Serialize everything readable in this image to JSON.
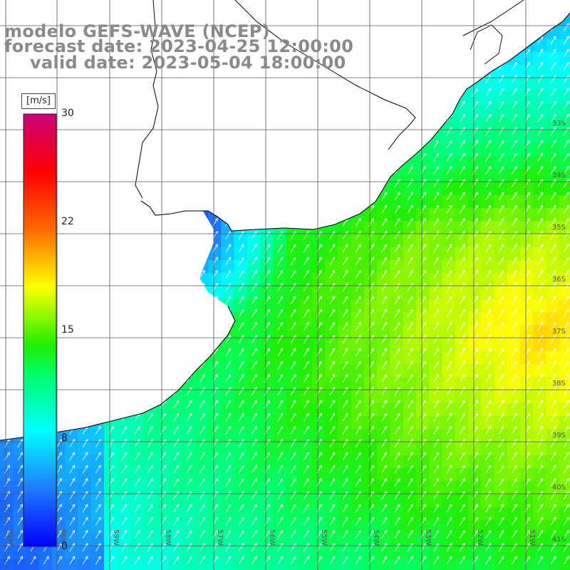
{
  "title": {
    "line1": "modelo GEFS-WAVE (NCEP)",
    "line2": "forecast date: 2023-04-25 12:00:00",
    "line3": "valid date: 2023-05-04 18:00:00"
  },
  "colorbar": {
    "unit": "[m/s]",
    "ticks": [
      "30",
      "22",
      "15",
      "8",
      "0"
    ],
    "tick_values": [
      30,
      22,
      15,
      8,
      0
    ],
    "stops": [
      {
        "v": 0,
        "c": "#0000ff"
      },
      {
        "v": 4,
        "c": "#1e7bff"
      },
      {
        "v": 8,
        "c": "#00ffff"
      },
      {
        "v": 12,
        "c": "#00ff66"
      },
      {
        "v": 14,
        "c": "#22ee00"
      },
      {
        "v": 18,
        "c": "#ffff00"
      },
      {
        "v": 22,
        "c": "#ff6a00"
      },
      {
        "v": 26,
        "c": "#ff0000"
      },
      {
        "v": 30,
        "c": "#c8007a"
      }
    ]
  },
  "axes": {
    "lat_labels": [
      "33S",
      "34S",
      "35S",
      "36S",
      "37S",
      "38S",
      "39S",
      "40S",
      "41S"
    ],
    "lon_labels": [
      "61W",
      "60W",
      "59W",
      "58W",
      "57W",
      "56W",
      "55W",
      "54W",
      "53W",
      "52W",
      "51W"
    ]
  },
  "colors": {
    "land": "#ffffff",
    "coast": "#000000",
    "grid": "#555555",
    "vector": "#ffffff",
    "title": "#8a8a8a"
  }
}
